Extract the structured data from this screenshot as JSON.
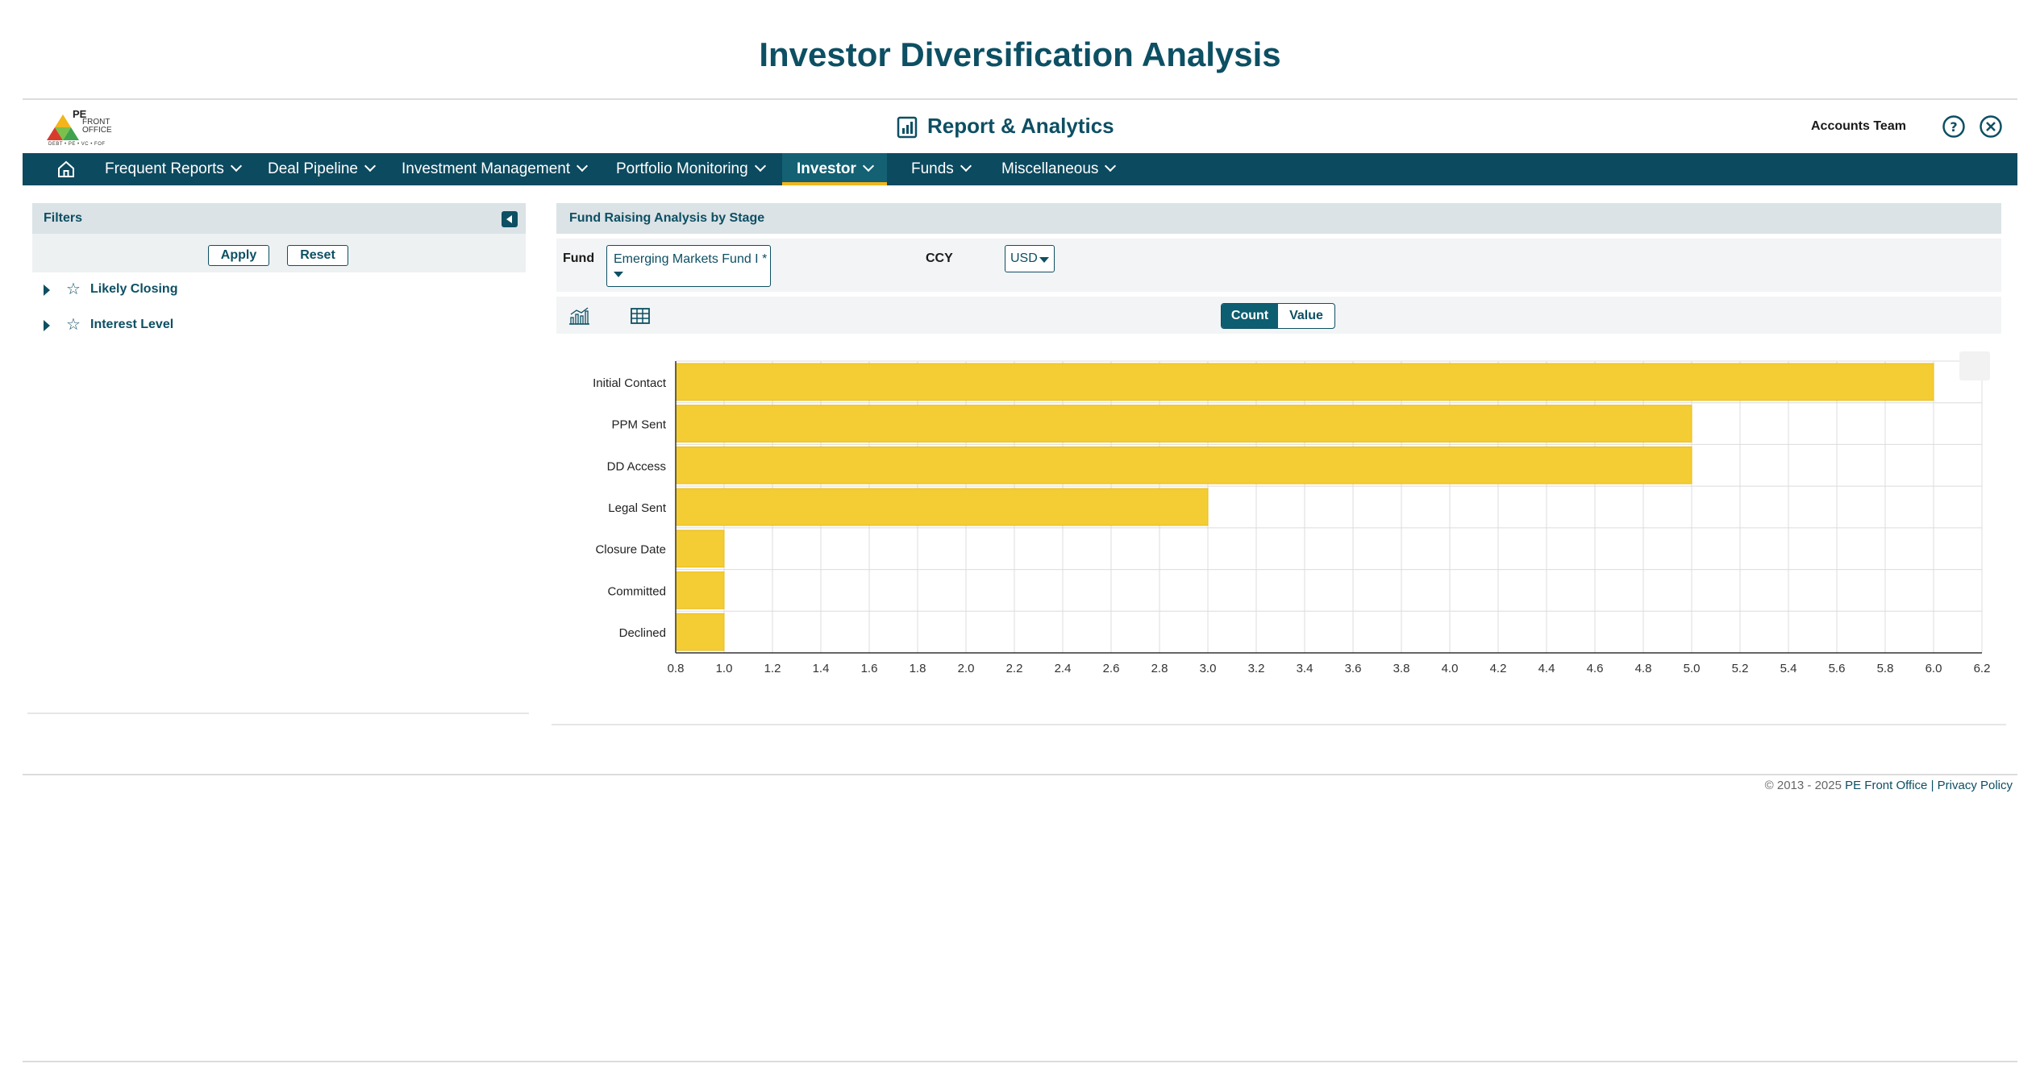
{
  "page": {
    "title": "Investor Diversification Analysis"
  },
  "header": {
    "logo": {
      "line1": "PE",
      "line2": "FRONT OFFICE",
      "tagline": "DEBT • PE • VC • FOF"
    },
    "title": "Report & Analytics",
    "user": "Accounts Team",
    "icons": [
      "help-icon",
      "close-icon"
    ]
  },
  "nav": {
    "items": [
      {
        "label": "Frequent Reports"
      },
      {
        "label": "Deal Pipeline"
      },
      {
        "label": "Investment Management"
      },
      {
        "label": "Portfolio Monitoring"
      },
      {
        "label": "Investor",
        "active": true
      },
      {
        "label": "Funds"
      },
      {
        "label": "Miscellaneous"
      }
    ],
    "accent": "#f2b51c",
    "background": "#0c4a5f"
  },
  "filters": {
    "title": "Filters",
    "apply_label": "Apply",
    "reset_label": "Reset",
    "items": [
      {
        "label": "Likely Closing"
      },
      {
        "label": "Interest Level"
      }
    ]
  },
  "main": {
    "title": "Fund Raising Analysis by Stage",
    "fund_label": "Fund",
    "fund_value": "Emerging Markets Fund I *",
    "ccy_label": "CCY",
    "ccy_value": "USD",
    "toggle": {
      "count": "Count",
      "value": "Value",
      "selected": "Count"
    }
  },
  "chart_data": {
    "type": "bar",
    "orientation": "horizontal",
    "categories": [
      "Initial Contact",
      "PPM Sent",
      "DD Access",
      "Legal Sent",
      "Closure Date",
      "Committed",
      "Declined"
    ],
    "values": [
      6,
      5,
      5,
      3,
      1,
      1,
      1
    ],
    "xlim": [
      0.8,
      6.2
    ],
    "xticks": [
      "0.8",
      "1.0",
      "1.2",
      "1.4",
      "1.6",
      "1.8",
      "2.0",
      "2.2",
      "2.4",
      "2.6",
      "2.8",
      "3.0",
      "3.2",
      "3.4",
      "3.6",
      "3.8",
      "4.0",
      "4.2",
      "4.4",
      "4.6",
      "4.8",
      "5.0",
      "5.2",
      "5.4",
      "5.6",
      "5.8",
      "6.0",
      "6.2"
    ],
    "grid": true,
    "color": "#f4cd35",
    "title": "",
    "xlabel": "",
    "ylabel": ""
  },
  "footer": {
    "copyright": "© 2013 - 2025",
    "company": "PE Front Office",
    "separator": "|",
    "privacy": "Privacy Policy"
  }
}
